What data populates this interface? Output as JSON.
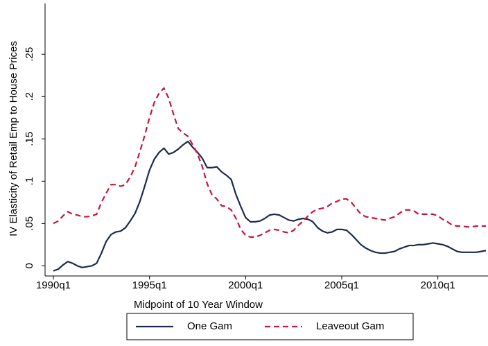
{
  "chart_data": {
    "type": "line",
    "xlabel": "Midpoint of 10 Year Window",
    "ylabel": "IV Elasticity of Retail Emp to House Prices",
    "x": [
      "1990q1",
      "1990q2",
      "1990q3",
      "1990q4",
      "1991q1",
      "1991q2",
      "1991q3",
      "1991q4",
      "1992q1",
      "1992q2",
      "1992q3",
      "1992q4",
      "1993q1",
      "1993q2",
      "1993q3",
      "1993q4",
      "1994q1",
      "1994q2",
      "1994q3",
      "1994q4",
      "1995q1",
      "1995q2",
      "1995q3",
      "1995q4",
      "1996q1",
      "1996q2",
      "1996q3",
      "1996q4",
      "1997q1",
      "1997q2",
      "1997q3",
      "1997q4",
      "1998q1",
      "1998q2",
      "1998q3",
      "1998q4",
      "1999q1",
      "1999q2",
      "1999q3",
      "1999q4",
      "2000q1",
      "2000q2",
      "2000q3",
      "2000q4",
      "2001q1",
      "2001q2",
      "2001q3",
      "2001q4",
      "2002q1",
      "2002q2",
      "2002q3",
      "2002q4",
      "2003q1",
      "2003q2",
      "2003q3",
      "2003q4",
      "2004q1",
      "2004q2",
      "2004q3",
      "2004q4",
      "2005q1",
      "2005q2",
      "2005q3",
      "2005q4",
      "2006q1",
      "2006q2",
      "2006q3",
      "2006q4",
      "2007q1",
      "2007q2",
      "2007q3",
      "2007q4",
      "2008q1",
      "2008q2",
      "2008q3",
      "2008q4",
      "2009q1",
      "2009q2",
      "2009q3",
      "2009q4",
      "2010q1",
      "2010q2",
      "2010q3",
      "2010q4",
      "2011q1",
      "2011q2",
      "2011q3",
      "2011q4",
      "2012q1",
      "2012q2",
      "2012q3"
    ],
    "series": [
      {
        "name": "One Gam",
        "color": "#1b2a4e",
        "dash": "solid",
        "values": [
          -0.006,
          -0.004,
          0.001,
          0.005,
          0.003,
          0,
          -0.002,
          -0.001,
          0,
          0.003,
          0.015,
          0.029,
          0.037,
          0.04,
          0.041,
          0.045,
          0.053,
          0.062,
          0.076,
          0.094,
          0.113,
          0.126,
          0.134,
          0.139,
          0.132,
          0.134,
          0.138,
          0.143,
          0.147,
          0.14,
          0.134,
          0.127,
          0.116,
          0.116,
          0.117,
          0.111,
          0.107,
          0.102,
          0.084,
          0.07,
          0.057,
          0.052,
          0.052,
          0.053,
          0.056,
          0.06,
          0.061,
          0.06,
          0.057,
          0.054,
          0.053,
          0.055,
          0.056,
          0.055,
          0.052,
          0.045,
          0.041,
          0.039,
          0.04,
          0.043,
          0.043,
          0.042,
          0.037,
          0.031,
          0.025,
          0.021,
          0.018,
          0.016,
          0.015,
          0.015,
          0.016,
          0.017,
          0.02,
          0.022,
          0.024,
          0.024,
          0.025,
          0.025,
          0.026,
          0.027,
          0.026,
          0.025,
          0.023,
          0.02,
          0.017,
          0.016,
          0.016,
          0.016,
          0.016,
          0.017,
          0.018
        ]
      },
      {
        "name": "Leaveout Gam",
        "color": "#c4163a",
        "dash": "dashed",
        "values": [
          0.05,
          0.053,
          0.059,
          0.064,
          0.061,
          0.06,
          0.058,
          0.058,
          0.059,
          0.061,
          0.075,
          0.086,
          0.096,
          0.096,
          0.094,
          0.096,
          0.105,
          0.117,
          0.135,
          0.154,
          0.175,
          0.193,
          0.204,
          0.21,
          0.198,
          0.179,
          0.162,
          0.157,
          0.153,
          0.143,
          0.132,
          0.117,
          0.097,
          0.084,
          0.079,
          0.071,
          0.07,
          0.066,
          0.056,
          0.043,
          0.036,
          0.034,
          0.034,
          0.036,
          0.039,
          0.042,
          0.043,
          0.042,
          0.04,
          0.039,
          0.042,
          0.048,
          0.053,
          0.059,
          0.064,
          0.067,
          0.068,
          0.07,
          0.074,
          0.076,
          0.079,
          0.079,
          0.075,
          0.068,
          0.061,
          0.058,
          0.057,
          0.056,
          0.055,
          0.054,
          0.056,
          0.058,
          0.062,
          0.066,
          0.066,
          0.065,
          0.061,
          0.061,
          0.061,
          0.061,
          0.059,
          0.055,
          0.052,
          0.048,
          0.047,
          0.047,
          0.046,
          0.046,
          0.047,
          0.047,
          0.047
        ]
      }
    ],
    "xticks": [
      "1990q1",
      "1995q1",
      "2000q1",
      "2005q1",
      "2010q1"
    ],
    "ylim": [
      -0.012,
      0.31
    ],
    "yticks": [
      0,
      {
        "value": 0.05,
        "label": ".05"
      },
      {
        "value": 0.1,
        "label": ".1"
      },
      {
        "value": 0.15,
        "label": ".15"
      },
      {
        "value": 0.2,
        "label": ".2"
      },
      {
        "value": 0.25,
        "label": ".25"
      }
    ],
    "grid": false,
    "legend": "bottom"
  }
}
